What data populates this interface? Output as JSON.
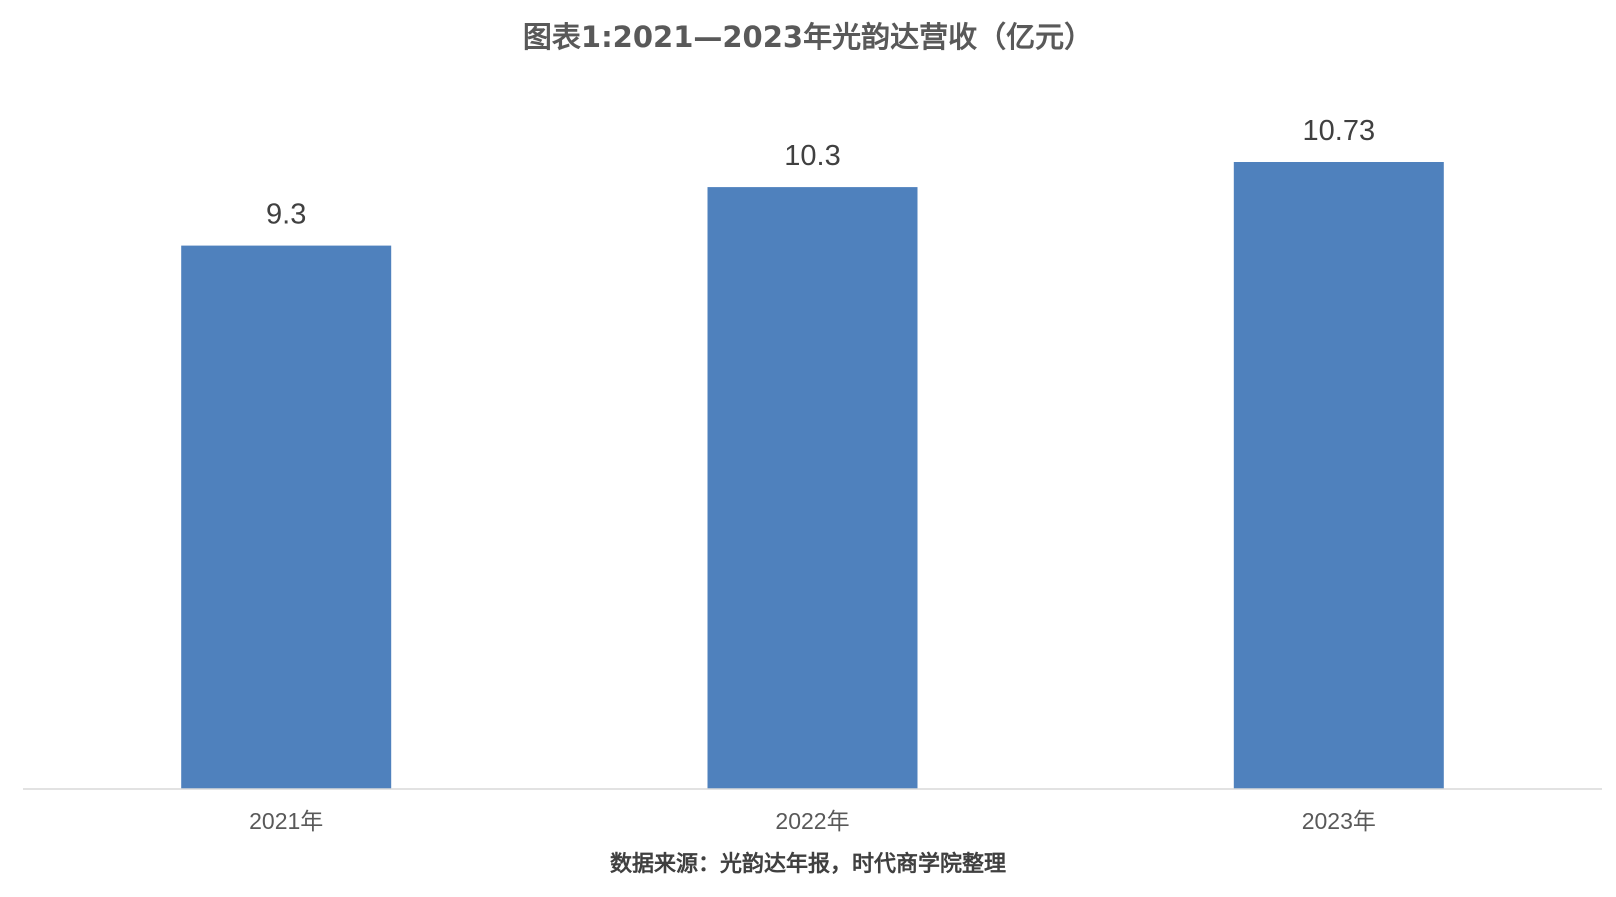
{
  "chart_data": {
    "type": "bar",
    "title": "图表1:2021—2023年光韵达营收（亿元）",
    "categories": [
      "2021年",
      "2022年",
      "2023年"
    ],
    "values": [
      9.3,
      10.3,
      10.73
    ],
    "value_labels": [
      "9.3",
      "10.3",
      "10.73"
    ],
    "xlabel": "",
    "ylabel": "",
    "ylim": [
      0,
      10.73
    ],
    "grid": false,
    "legend": "none",
    "bar_color": "#4F81BD",
    "axis_color": "#D9D9D9"
  },
  "footer": {
    "source": "数据来源：光韵达年报，时代商学院整理"
  }
}
